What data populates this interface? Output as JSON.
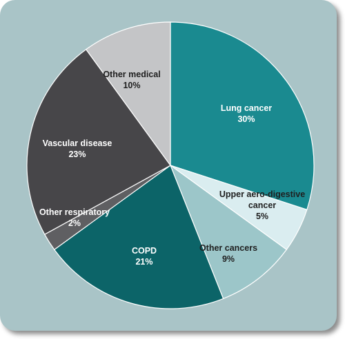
{
  "chart_data": {
    "type": "pie",
    "start_angle_deg": 0,
    "direction": "clockwise",
    "slices": [
      {
        "label": "Lung cancer",
        "value_label": "30%",
        "value": 30,
        "color": "#1a8a90",
        "text_color": "#ffffff"
      },
      {
        "label": "Upper aero-digestive cancer",
        "value_label": "5%",
        "value": 5,
        "color": "#daedf0",
        "text_color": "#1f1f1f"
      },
      {
        "label": "Other cancers",
        "value_label": "9%",
        "value": 9,
        "color": "#9cc6c9",
        "text_color": "#1f1f1f"
      },
      {
        "label": "COPD",
        "value_label": "21%",
        "value": 21,
        "color": "#0c6468",
        "text_color": "#ffffff"
      },
      {
        "label": "Other respiratory",
        "value_label": "2%",
        "value": 2,
        "color": "#5f5f62",
        "text_color": "#ffffff"
      },
      {
        "label": "Vascular disease",
        "value_label": "23%",
        "value": 23,
        "color": "#474649",
        "text_color": "#ffffff"
      },
      {
        "label": "Other medical",
        "value_label": "10%",
        "value": 10,
        "color": "#c4c5c7",
        "text_color": "#1f1f1f"
      }
    ]
  }
}
